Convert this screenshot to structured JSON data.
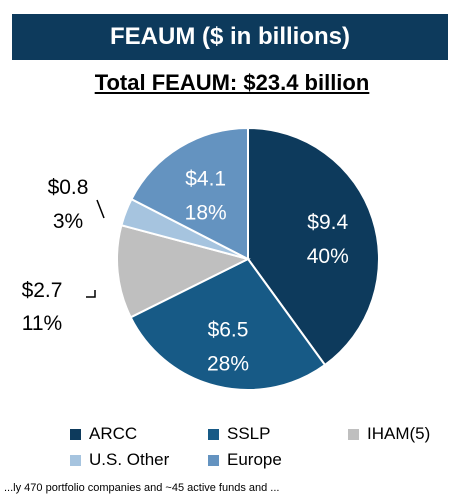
{
  "header": {
    "title": "FEAUM ($ in billions)"
  },
  "subtitle": "Total FEAUM: $23.4 billion",
  "footer_text": "...ly 470 portfolio companies and ~45 active funds and ...",
  "chart_data": {
    "type": "pie",
    "title": "FEAUM ($ in billions)",
    "subtitle": "Total FEAUM: $23.4 billion",
    "legend_position": "bottom",
    "slices": [
      {
        "name": "ARCC",
        "value": 9.4,
        "value_label": "$9.4",
        "percent_label": "40%",
        "color": "#0d3a5c"
      },
      {
        "name": "SSLP",
        "value": 6.5,
        "value_label": "$6.5",
        "percent_label": "28%",
        "color": "#175a86"
      },
      {
        "name": "IHAM(5)",
        "value": 2.7,
        "value_label": "$2.7",
        "percent_label": "11%",
        "color": "#bfbfbf"
      },
      {
        "name": "U.S. Other",
        "value": 0.8,
        "value_label": "$0.8",
        "percent_label": "3%",
        "color": "#a6c4df"
      },
      {
        "name": "Europe",
        "value": 4.1,
        "value_label": "$4.1",
        "percent_label": "18%",
        "color": "#6493c0"
      }
    ]
  }
}
